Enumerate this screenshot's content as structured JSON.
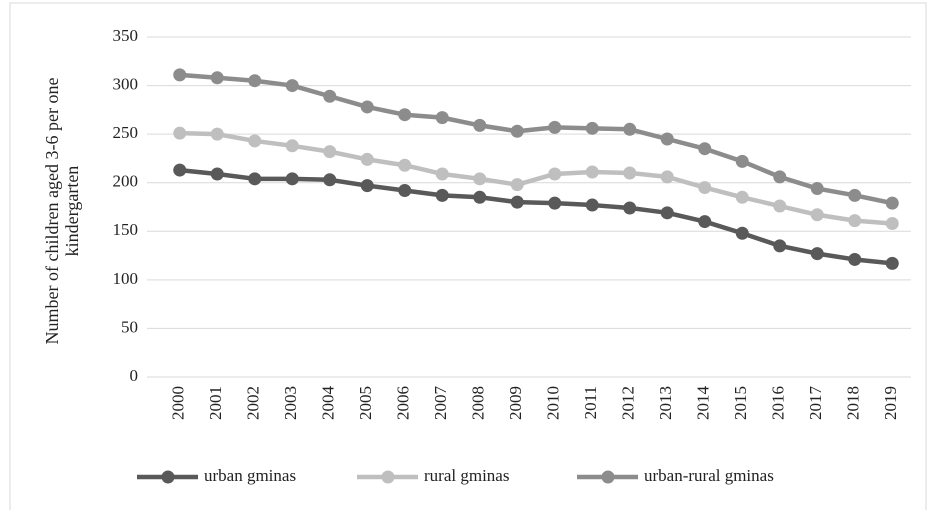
{
  "chart_data": {
    "type": "line",
    "y_axis_label": "Number of children aged 3-6 per one kindergarten",
    "categories": [
      "2000",
      "2001",
      "2002",
      "2003",
      "2004",
      "2005",
      "2006",
      "2007",
      "2008",
      "2009",
      "2010",
      "2011",
      "2012",
      "2013",
      "2014",
      "2015",
      "2016",
      "2017",
      "2018",
      "2019"
    ],
    "series": [
      {
        "name": "urban gminas",
        "color": "#595959",
        "values": [
          213,
          209,
          204,
          204,
          203,
          197,
          192,
          187,
          185,
          180,
          179,
          177,
          174,
          169,
          160,
          148,
          135,
          127,
          121,
          117
        ]
      },
      {
        "name": "rural gminas",
        "color": "#bfbfbf",
        "values": [
          251,
          250,
          243,
          238,
          232,
          224,
          218,
          209,
          204,
          198,
          209,
          211,
          210,
          206,
          195,
          185,
          176,
          167,
          161,
          158
        ]
      },
      {
        "name": "urban-rural gminas",
        "color": "#8c8c8c",
        "values": [
          311,
          308,
          305,
          300,
          289,
          278,
          270,
          267,
          259,
          253,
          257,
          256,
          255,
          245,
          235,
          222,
          206,
          194,
          187,
          179
        ]
      }
    ],
    "ylim": [
      0,
      350
    ],
    "yticks": [
      0,
      50,
      100,
      150,
      200,
      250,
      300,
      350
    ],
    "grid": true,
    "legend": "bottom"
  }
}
